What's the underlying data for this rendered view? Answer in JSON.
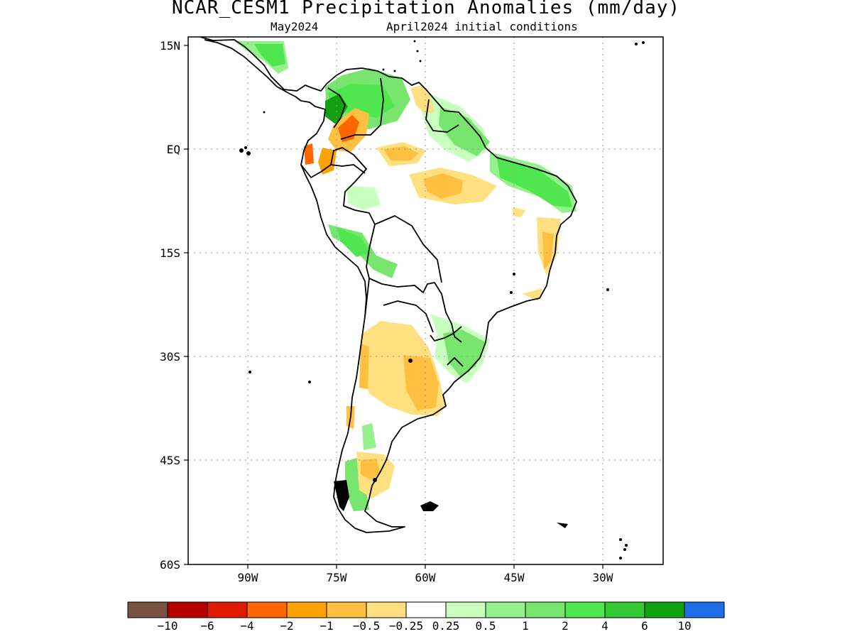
{
  "title": "NCAR_CESM1 Precipitation Anomalies (mm/day)",
  "valid_month": "May2024",
  "initial_conditions": "April2024 initial conditions",
  "lat_ticks": [
    "15N",
    "EQ",
    "15S",
    "30S",
    "45S",
    "60S"
  ],
  "lon_ticks": [
    "90W",
    "75W",
    "60W",
    "45W",
    "30W"
  ],
  "colorbar": {
    "colors": [
      "#7a5242",
      "#b80000",
      "#e01a00",
      "#ff6600",
      "#ffa200",
      "#ffbf40",
      "#ffe080",
      "#ffffff",
      "#c8ffbe",
      "#96f08c",
      "#78e66e",
      "#50e650",
      "#34c834",
      "#10a010",
      "#1e6ee6"
    ],
    "labels": [
      "−10",
      "−6",
      "−4",
      "−2",
      "−1",
      "−0.5",
      "−0.25",
      "0.25",
      "0.5",
      "1",
      "2",
      "4",
      "6",
      "10"
    ]
  },
  "map": {
    "region": "South America",
    "lon_range": [
      -100,
      -20
    ],
    "lat_range": [
      -60,
      15
    ],
    "grid": "dotted",
    "projection": "cylindrical equidistant"
  }
}
